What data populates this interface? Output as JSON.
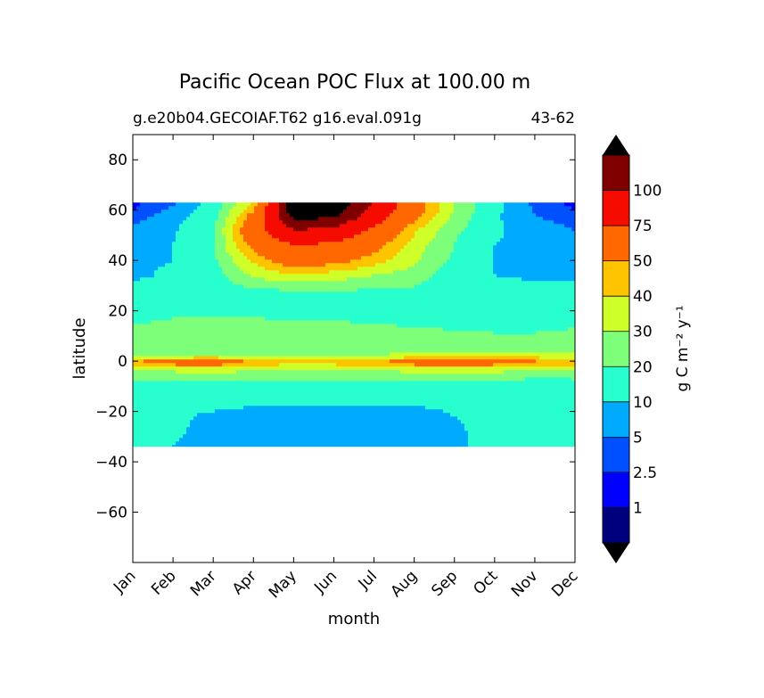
{
  "chart_data": {
    "type": "heatmap",
    "subtype": "filled-contour",
    "title": "Pacific Ocean POC Flux at 100.00 m",
    "subtitle_left": "g.e20b04.GECOIAF.T62 g16.eval.091g",
    "subtitle_right": "43-62",
    "xlabel": "month",
    "ylabel": "latitude",
    "x_ticks": [
      "Jan",
      "Feb",
      "Mar",
      "Apr",
      "May",
      "Jun",
      "Jul",
      "Aug",
      "Sep",
      "Oct",
      "Nov",
      "Dec"
    ],
    "y_ticks": [
      80,
      60,
      40,
      20,
      0,
      -20,
      -40,
      -60
    ],
    "ylim": [
      -80,
      90
    ],
    "xlim": [
      1,
      12
    ],
    "data_lat_range": [
      -34,
      63
    ],
    "colorbar": {
      "label": "g C m⁻² y⁻¹",
      "levels": [
        1,
        2.5,
        5,
        10,
        20,
        30,
        40,
        50,
        75,
        100
      ],
      "tick_labels": [
        "1",
        "2.5",
        "5",
        "10",
        "20",
        "30",
        "40",
        "50",
        "75",
        "100"
      ],
      "extend": "both",
      "colors": [
        "#00007f",
        "#0000ff",
        "#0050ff",
        "#00aaff",
        "#29ffce",
        "#7dff7a",
        "#ceff29",
        "#ffc400",
        "#ff6800",
        "#f50b00",
        "#800000"
      ],
      "under_color": "#000000",
      "over_color": "#000000"
    },
    "latitudes": [
      63,
      58,
      52,
      46,
      40,
      34,
      28,
      22,
      16,
      10,
      6,
      3,
      1,
      0,
      -1,
      -3,
      -6,
      -10,
      -16,
      -22,
      -28,
      -34
    ],
    "values": [
      [
        1.8,
        4,
        12,
        40,
        140,
        140,
        100,
        60,
        30,
        12,
        4,
        1.8
      ],
      [
        3,
        7,
        15,
        55,
        130,
        125,
        90,
        55,
        28,
        11,
        5,
        3
      ],
      [
        6,
        9,
        18,
        65,
        100,
        95,
        70,
        42,
        22,
        11,
        7,
        5
      ],
      [
        8,
        10,
        20,
        55,
        75,
        70,
        55,
        35,
        20,
        10,
        8,
        7
      ],
      [
        9,
        10,
        18,
        42,
        60,
        55,
        45,
        32,
        18,
        10,
        8,
        8
      ],
      [
        9,
        11,
        15,
        32,
        38,
        35,
        30,
        25,
        14,
        10,
        9,
        9
      ],
      [
        12,
        13,
        14,
        18,
        20,
        20,
        19,
        18,
        14,
        12,
        12,
        12
      ],
      [
        14,
        15,
        15,
        16,
        16,
        16,
        16,
        15,
        14,
        13,
        13,
        14
      ],
      [
        19,
        21,
        21,
        21,
        20,
        20,
        19,
        18,
        17,
        16,
        16,
        18
      ],
      [
        22,
        23,
        23,
        24,
        24,
        25,
        24,
        23,
        22,
        21,
        21,
        22
      ],
      [
        21,
        21,
        21,
        22,
        22,
        22,
        22,
        22,
        21,
        20,
        20,
        21
      ],
      [
        25,
        27,
        27,
        26,
        26,
        27,
        28,
        30,
        32,
        34,
        33,
        30
      ],
      [
        35,
        42,
        44,
        38,
        35,
        36,
        38,
        44,
        52,
        48,
        42,
        38
      ],
      [
        48,
        56,
        58,
        48,
        42,
        44,
        46,
        56,
        64,
        56,
        50,
        48
      ],
      [
        46,
        54,
        56,
        46,
        40,
        42,
        44,
        54,
        62,
        54,
        48,
        46
      ],
      [
        32,
        36,
        37,
        34,
        32,
        33,
        34,
        36,
        38,
        36,
        34,
        33
      ],
      [
        22,
        22,
        23,
        23,
        23,
        23,
        23,
        23,
        24,
        23,
        22,
        22
      ],
      [
        15,
        15,
        16,
        16,
        16,
        16,
        16,
        16,
        15,
        15,
        14,
        15
      ],
      [
        12,
        12,
        12,
        11,
        11,
        11,
        11,
        11,
        11,
        12,
        12,
        12
      ],
      [
        12,
        11,
        9,
        8,
        8,
        8,
        8,
        8,
        10,
        12,
        12,
        12
      ],
      [
        12,
        11,
        8,
        7,
        7,
        7,
        7,
        7,
        9,
        12,
        13,
        13
      ],
      [
        12,
        10,
        8,
        7,
        6.5,
        6.5,
        7,
        7,
        9,
        12,
        13,
        13
      ]
    ]
  }
}
